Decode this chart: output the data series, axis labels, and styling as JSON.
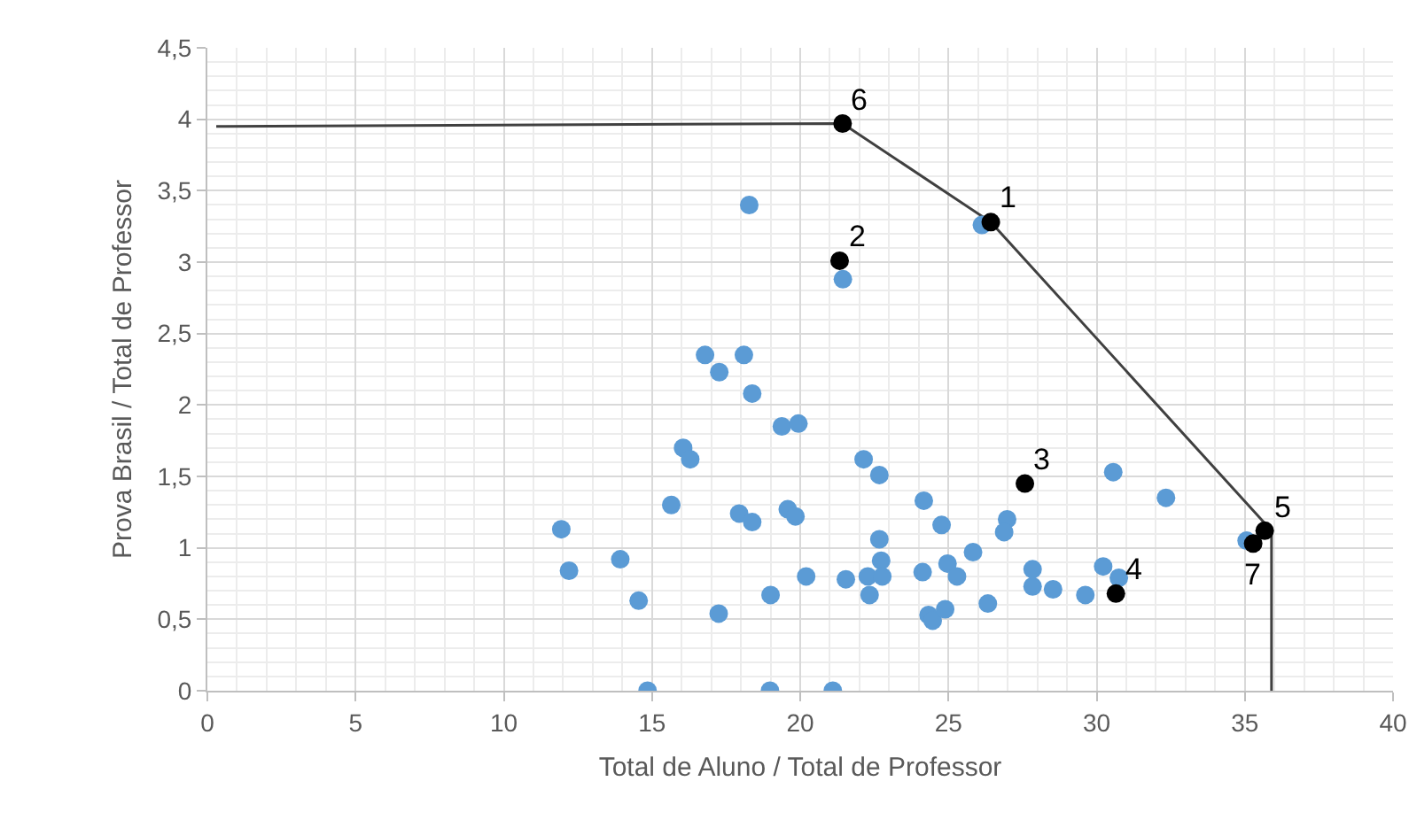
{
  "chart_data": {
    "type": "scatter",
    "xlabel": "Total de Aluno / Total de Professor",
    "ylabel": "Prova Brasil / Total de Professor",
    "xlim": [
      0,
      40
    ],
    "xticks": [
      0,
      5,
      10,
      15,
      20,
      25,
      30,
      35,
      40
    ],
    "ylim": [
      0,
      4.5
    ],
    "yticks": [
      {
        "value": 0,
        "label": "0"
      },
      {
        "value": 0.5,
        "label": "0,5"
      },
      {
        "value": 1,
        "label": "1"
      },
      {
        "value": 1.5,
        "label": "1,5"
      },
      {
        "value": 2,
        "label": "2"
      },
      {
        "value": 2.5,
        "label": "2,5"
      },
      {
        "value": 3,
        "label": "3"
      },
      {
        "value": 3.5,
        "label": "3,5"
      },
      {
        "value": 4,
        "label": "4"
      },
      {
        "value": 4.5,
        "label": "4,5"
      }
    ],
    "grid": true,
    "marker": "circle",
    "series": [
      {
        "type": "line",
        "color": "#404040",
        "marker": "none",
        "x": [
          0.3,
          21.43,
          26.43,
          35.9,
          35.9
        ],
        "values": [
          3.95,
          3.97,
          3.28,
          1.12,
          0
        ]
      },
      {
        "color": "#5b9bd5",
        "x": [
          18.28,
          21.44,
          16.79,
          18.1,
          17.27,
          18.38,
          19.38,
          19.94,
          16.05,
          16.29,
          22.14,
          22.67,
          15.65,
          17.94,
          18.38,
          19.58,
          19.84,
          11.94,
          12.2,
          13.93,
          14.55,
          17.25,
          19.0,
          20.2,
          21.54,
          22.67,
          22.73,
          22.28,
          22.77,
          22.34,
          24.17,
          24.77,
          25.83,
          24.13,
          24.97,
          25.29,
          24.33,
          24.47,
          24.89,
          14.85,
          18.98,
          21.1,
          26.13,
          26.33,
          26.98,
          26.88,
          27.84,
          27.84,
          28.53,
          29.62,
          30.22,
          30.75,
          30.56,
          32.34,
          35.06
        ],
        "values": [
          3.4,
          2.88,
          2.35,
          2.35,
          2.23,
          2.08,
          1.85,
          1.87,
          1.7,
          1.62,
          1.62,
          1.51,
          1.3,
          1.24,
          1.18,
          1.27,
          1.22,
          1.13,
          0.84,
          0.92,
          0.63,
          0.54,
          0.67,
          0.8,
          0.78,
          1.06,
          0.91,
          0.8,
          0.8,
          0.67,
          1.33,
          1.16,
          0.97,
          0.83,
          0.89,
          0.8,
          0.53,
          0.49,
          0.57,
          0,
          0,
          0,
          3.26,
          0.61,
          1.2,
          1.11,
          0.85,
          0.73,
          0.71,
          0.67,
          0.87,
          0.79,
          1.53,
          1.35,
          1.05
        ]
      },
      {
        "color": "#000000",
        "x": [
          21.43,
          26.43,
          21.33,
          27.58,
          30.65,
          35.67,
          35.28
        ],
        "values": [
          3.97,
          3.28,
          3.01,
          1.45,
          0.68,
          1.12,
          1.03
        ]
      }
    ],
    "annotations": [
      {
        "text": "6",
        "x": 21.43,
        "y": 3.97
      },
      {
        "text": "1",
        "x": 26.43,
        "y": 3.28
      },
      {
        "text": "2",
        "x": 21.33,
        "y": 3.01
      },
      {
        "text": "3",
        "x": 27.58,
        "y": 1.45
      },
      {
        "text": "4",
        "x": 30.65,
        "y": 0.68
      },
      {
        "text": "5",
        "x": 35.67,
        "y": 1.12
      },
      {
        "text": "7",
        "x": 35.28,
        "y": 1.03
      }
    ]
  }
}
